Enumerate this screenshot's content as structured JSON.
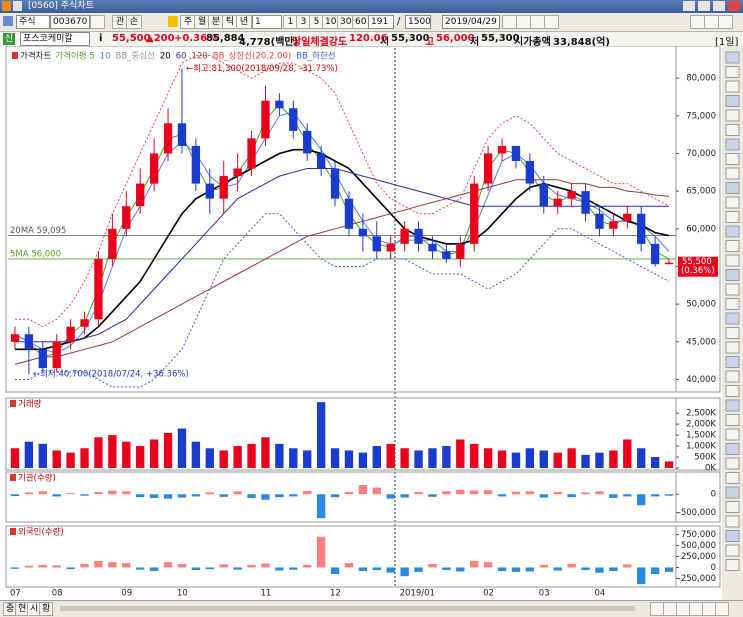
{
  "window": {
    "title": "[0560] 주식차트"
  },
  "toolbar": {
    "market": "주식",
    "code": "003670",
    "buttons": [
      "관",
      "손"
    ],
    "periods": [
      "주",
      "월",
      "분",
      "틱",
      "년"
    ],
    "unit": "1",
    "intervals": [
      "1",
      "3",
      "5",
      "10",
      "30",
      "60"
    ],
    "count": "191",
    "separator": "/",
    "total": "1500",
    "date": "2019/04/29"
  },
  "info": {
    "tag": "신",
    "name": "포스코케미칼",
    "i": "i",
    "price": "55,500",
    "change": "▲200",
    "rate": "+0.36%",
    "volume": "85,884",
    "amount": "4,778(백만)",
    "strength_label": "당일체결강도",
    "strength": "120.06",
    "open_label": "시",
    "open": "55,300",
    "high_label": "고",
    "high": "56,000",
    "low_label": "저",
    "low": "55,300",
    "cap_label": "시가총액",
    "cap": "33,848(억)",
    "period": "[1일]"
  },
  "status": {
    "tabs": [
      "중",
      "현",
      "시",
      "황"
    ]
  },
  "chart_data": [
    {
      "type": "candlestick",
      "title": "가격차트",
      "categories": [
        "07",
        null,
        null,
        "08",
        null,
        null,
        null,
        null,
        "09",
        null,
        null,
        null,
        "10",
        null,
        null,
        null,
        null,
        null,
        "11",
        null,
        null,
        null,
        null,
        "12",
        null,
        null,
        null,
        null,
        "2019/01",
        null,
        null,
        null,
        null,
        null,
        "02",
        null,
        null,
        null,
        "03",
        null,
        null,
        null,
        "04",
        null,
        null,
        null,
        null,
        null
      ],
      "open": [
        45000,
        46000,
        44000,
        41500,
        45000,
        47000,
        48000,
        56000,
        60000,
        63000,
        66000,
        70000,
        74000,
        71000,
        66000,
        64000,
        67000,
        68000,
        72000,
        77000,
        76000,
        73000,
        70000,
        68000,
        64000,
        60000,
        59000,
        57000,
        58000,
        60000,
        58000,
        57000,
        56000,
        58000,
        66000,
        70000,
        71000,
        69000,
        66000,
        63000,
        64000,
        65000,
        62000,
        60000,
        61000,
        62000,
        58000,
        55300
      ],
      "high": [
        47000,
        47000,
        45000,
        46000,
        48000,
        49000,
        57000,
        62000,
        65000,
        68000,
        72000,
        76000,
        81300,
        72000,
        68000,
        69000,
        70000,
        73000,
        79000,
        78000,
        77000,
        74000,
        71000,
        69000,
        65000,
        62000,
        61000,
        59000,
        61000,
        61000,
        59000,
        58000,
        59000,
        67000,
        71000,
        72000,
        71000,
        70000,
        67000,
        65000,
        66000,
        66000,
        63000,
        62000,
        63000,
        63000,
        59000,
        56000
      ],
      "low": [
        44000,
        40700,
        41000,
        41000,
        44000,
        46000,
        47000,
        55000,
        59000,
        62000,
        65000,
        69000,
        70000,
        65000,
        62000,
        62000,
        65000,
        67000,
        71000,
        75000,
        72000,
        69000,
        67000,
        63000,
        59000,
        57000,
        56000,
        56000,
        57000,
        57000,
        56000,
        55500,
        55000,
        57000,
        65000,
        69000,
        68000,
        65000,
        62000,
        62000,
        63000,
        61000,
        59000,
        59000,
        60000,
        57000,
        55000,
        55300
      ],
      "close": [
        46000,
        44000,
        41500,
        45000,
        47000,
        48000,
        56000,
        60000,
        63000,
        66000,
        70000,
        74000,
        71000,
        66000,
        64000,
        67000,
        68000,
        72000,
        77000,
        76000,
        73000,
        70000,
        68000,
        64000,
        60000,
        59000,
        57000,
        58000,
        60000,
        58000,
        57000,
        56000,
        58000,
        66000,
        70000,
        71000,
        69000,
        66000,
        63000,
        64000,
        65000,
        62000,
        60000,
        61000,
        62000,
        58000,
        55300,
        55500
      ],
      "up_color": "#e8001c",
      "down_color": "#1a3ccc",
      "series": [
        {
          "name": "가격이평 5",
          "color": "#4fa02a",
          "values": [
            46000,
            45000,
            43000,
            43500,
            46000,
            47500,
            52000,
            58000,
            61500,
            64500,
            68000,
            72000,
            72500,
            68500,
            65000,
            65500,
            67500,
            70000,
            74500,
            76500,
            74500,
            71500,
            69000,
            66000,
            62000,
            59500,
            58000,
            57500,
            59000,
            59000,
            57500,
            56500,
            57000,
            62000,
            68000,
            70500,
            70000,
            67500,
            64500,
            63500,
            64500,
            63500,
            61000,
            60500,
            61500,
            60000,
            57000,
            56000
          ]
        },
        {
          "name": "10",
          "color": "#4f7fff",
          "values": [
            46000,
            45000,
            44000,
            43500,
            44500,
            46500,
            50000,
            55000,
            60000,
            63000,
            66500,
            70000,
            71500,
            70000,
            67000,
            65500,
            66000,
            69000,
            72000,
            75000,
            75500,
            73000,
            70500,
            67500,
            64000,
            61000,
            58500,
            58000,
            58500,
            58500,
            58500,
            57000,
            57000,
            60000,
            64500,
            69000,
            70000,
            68500,
            66000,
            64500,
            64000,
            63500,
            62500,
            61000,
            61000,
            60500,
            59000,
            57000
          ]
        },
        {
          "name": "BB_중심선",
          "color": "#999999",
          "values": [
            44000,
            44000,
            44000,
            44500,
            45000,
            45500,
            47000,
            49000,
            51000,
            53000,
            56000,
            59000,
            62000,
            64000,
            65000,
            66000,
            67000,
            68000,
            69000,
            70000,
            70500,
            70500,
            70000,
            69000,
            68000,
            66000,
            64000,
            62000,
            60000,
            59000,
            58500,
            58000,
            58000,
            58500,
            60000,
            62000,
            64000,
            65500,
            66000,
            65500,
            65000,
            64000,
            63000,
            62000,
            61000,
            60500,
            59500,
            59095
          ]
        },
        {
          "name": "20",
          "color": "#000000",
          "width": 1.6,
          "values": [
            44000,
            44000,
            44000,
            44500,
            45000,
            45500,
            47000,
            49000,
            51000,
            53000,
            56000,
            59000,
            62000,
            64000,
            65000,
            66000,
            67000,
            68000,
            69000,
            70000,
            70500,
            70500,
            70000,
            69000,
            68000,
            66000,
            64000,
            62000,
            60000,
            59000,
            58500,
            58000,
            58000,
            58500,
            60000,
            62000,
            64000,
            65500,
            66000,
            65500,
            65000,
            64000,
            63000,
            62000,
            61000,
            60500,
            59500,
            59095
          ]
        },
        {
          "name": "60",
          "color": "#2b2bb0",
          "values": [
            45000,
            45000,
            45000,
            45000,
            45000,
            45500,
            46000,
            47000,
            48000,
            50000,
            52000,
            54000,
            56000,
            58000,
            60000,
            62000,
            64000,
            65000,
            66000,
            67000,
            67500,
            68000,
            68000,
            68000,
            67500,
            67000,
            66500,
            66000,
            65500,
            65000,
            64500,
            64000,
            63500,
            63000,
            63000,
            63000,
            63000,
            63000,
            63000,
            63000,
            63000,
            63000,
            63000,
            63000,
            63000,
            63000,
            63000,
            63000
          ]
        },
        {
          "name": "120",
          "color": "#9b3a3a",
          "values": [
            42000,
            42500,
            43000,
            43000,
            43500,
            44000,
            44500,
            45000,
            46000,
            47000,
            48000,
            49000,
            50000,
            51000,
            52000,
            53000,
            54000,
            55000,
            56000,
            57000,
            58000,
            59000,
            59500,
            60000,
            60500,
            61000,
            61500,
            62000,
            62500,
            63000,
            63500,
            64000,
            64500,
            65000,
            65500,
            66000,
            66500,
            66500,
            66500,
            66500,
            66000,
            66000,
            65500,
            65500,
            65000,
            64800,
            64500,
            64300
          ]
        },
        {
          "name": "BB_상한선(20,2.00)",
          "color": "#ff4040",
          "dash": true,
          "values": [
            48000,
            48000,
            47000,
            48000,
            50000,
            53000,
            57000,
            62000,
            66000,
            70000,
            74000,
            78000,
            82000,
            83000,
            83000,
            82000,
            81000,
            80000,
            81000,
            82000,
            82000,
            81000,
            80000,
            78000,
            74000,
            70000,
            66000,
            64000,
            63000,
            62000,
            62000,
            63000,
            64000,
            68000,
            72000,
            74000,
            75000,
            74000,
            72000,
            70000,
            69000,
            68000,
            67000,
            66000,
            66000,
            65000,
            64000,
            63000
          ]
        },
        {
          "name": "BB_하한선",
          "color": "#3b5bff",
          "dash": true,
          "values": [
            40000,
            40000,
            41000,
            41000,
            41000,
            41000,
            40000,
            39000,
            39000,
            39000,
            40000,
            42000,
            44000,
            48000,
            52000,
            56000,
            58000,
            60000,
            62000,
            62000,
            60000,
            58000,
            56000,
            55000,
            55000,
            55000,
            56000,
            56000,
            56000,
            55000,
            54000,
            54000,
            54000,
            53000,
            52000,
            53000,
            54000,
            56000,
            58000,
            60000,
            60000,
            59000,
            58000,
            57000,
            56000,
            55000,
            54000,
            53000
          ]
        }
      ],
      "hlines": [
        {
          "label": "20MA 59,095",
          "value": 59095,
          "color": "#555555"
        },
        {
          "label": "5MA 56,000",
          "value": 56000,
          "color": "#5aa02c"
        }
      ],
      "high_note": "←최고:81,300(2018/09/28, -31.73%)",
      "low_note": "←최저:40,700(2018/07/24, +36.36%)",
      "last_price_label": "55,500",
      "last_change_label": "(0.36%)",
      "ylim": [
        38600,
        84000
      ],
      "yticks": [
        {
          "value": 40000,
          "label": "40,000"
        },
        {
          "value": 45000,
          "label": "45,000"
        },
        {
          "value": 50000,
          "label": "50,000"
        },
        {
          "value": 55000,
          "label": "55,000"
        },
        {
          "value": 60000,
          "label": "60,000"
        },
        {
          "value": 65000,
          "label": "65,000"
        },
        {
          "value": 70000,
          "label": "70,000"
        },
        {
          "value": 75000,
          "label": "75,000"
        },
        {
          "value": 80000,
          "label": "80,000"
        }
      ]
    },
    {
      "type": "bar",
      "title": "거래량",
      "color_by": "candle",
      "up_color": "#e8001c",
      "down_color": "#1a3ccc",
      "values": [
        900,
        1200,
        1100,
        800,
        700,
        900,
        1400,
        1500,
        1200,
        1000,
        1300,
        1600,
        1800,
        1200,
        900,
        800,
        1000,
        1100,
        1400,
        1100,
        900,
        800,
        3000,
        900,
        800,
        700,
        1000,
        1100,
        900,
        800,
        900,
        1000,
        1300,
        1100,
        900,
        800,
        700,
        900,
        800,
        700,
        900,
        600,
        700,
        800,
        1300,
        900,
        500,
        300
      ],
      "ylim": [
        0,
        3100
      ],
      "yticks": [
        {
          "value": 0,
          "label": "0K"
        },
        {
          "value": 500,
          "label": "500K"
        },
        {
          "value": 1000,
          "label": "1,000K"
        },
        {
          "value": 1500,
          "label": "1,500K"
        },
        {
          "value": 2000,
          "label": "2,000K"
        },
        {
          "value": 2500,
          "label": "2,500K"
        }
      ]
    },
    {
      "type": "bar",
      "title": "기관(수량)",
      "color_by": "sign",
      "up_color": "#ff7f7f",
      "down_color": "#2b8ae0",
      "values": [
        -50000,
        50000,
        80000,
        -60000,
        30000,
        -40000,
        60000,
        100000,
        80000,
        -80000,
        -100000,
        -120000,
        -90000,
        -60000,
        50000,
        -70000,
        80000,
        -100000,
        -150000,
        -80000,
        -60000,
        90000,
        -650000,
        -80000,
        60000,
        250000,
        180000,
        -120000,
        -90000,
        60000,
        -70000,
        80000,
        120000,
        100000,
        110000,
        -60000,
        70000,
        80000,
        -90000,
        60000,
        -80000,
        50000,
        80000,
        -100000,
        -60000,
        -300000,
        -60000,
        -40000
      ],
      "ylim": [
        -700000,
        550000
      ],
      "yticks": [
        {
          "value": -500000,
          "label": "-500,000"
        },
        0
      ]
    },
    {
      "type": "bar",
      "title": "외국인(수량)",
      "color_by": "sign",
      "up_color": "#ff7f7f",
      "down_color": "#2b8ae0",
      "values": [
        -30000,
        40000,
        60000,
        50000,
        -40000,
        80000,
        150000,
        120000,
        100000,
        -50000,
        -80000,
        120000,
        80000,
        -60000,
        -40000,
        70000,
        -50000,
        60000,
        90000,
        -70000,
        -50000,
        60000,
        700000,
        -150000,
        100000,
        -80000,
        -60000,
        -120000,
        -200000,
        -100000,
        80000,
        -60000,
        -90000,
        150000,
        120000,
        -80000,
        -100000,
        -90000,
        60000,
        -70000,
        80000,
        -60000,
        -120000,
        -80000,
        70000,
        -380000,
        -150000,
        -100000
      ],
      "ylim": [
        -400000,
        900000
      ],
      "yticks": [
        {
          "value": -250000,
          "label": "-250,000"
        },
        0,
        {
          "value": 250000,
          "label": "250,000"
        },
        {
          "value": 500000,
          "label": "500,000"
        },
        {
          "value": 750000,
          "label": "750,000"
        }
      ]
    }
  ]
}
